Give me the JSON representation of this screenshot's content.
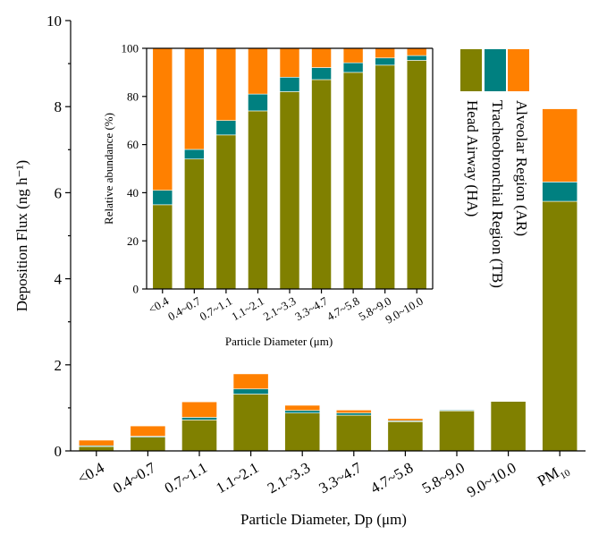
{
  "chart_data": [
    {
      "type": "bar",
      "stacked": true,
      "categories": [
        "<0.4",
        "0.4~0.7",
        "0.7~1.1",
        "1.1~2.1",
        "2.1~3.3",
        "3.3~4.7",
        "4.7~5.8",
        "5.8~9.0",
        "9.0~10.0",
        "PM10"
      ],
      "series": [
        {
          "name": "Head Airway (HA)",
          "color": "#808000",
          "values": [
            0.1,
            0.32,
            0.72,
            1.32,
            0.88,
            0.83,
            0.68,
            0.93,
            1.15,
            5.8
          ]
        },
        {
          "name": "Tracheobronchial Region (TB)",
          "color": "#008080",
          "values": [
            0.02,
            0.02,
            0.06,
            0.12,
            0.06,
            0.05,
            0.02,
            0.02,
            0.01,
            0.45
          ]
        },
        {
          "name": "Alveolar Region (AR)",
          "color": "#ff8000",
          "values": [
            0.13,
            0.24,
            0.36,
            0.35,
            0.12,
            0.07,
            0.05,
            0.01,
            0.0,
            1.7
          ]
        }
      ],
      "xlabel": "Particle Diameter, Dp (μm)",
      "ylabel": "Deposition Flux (ng h⁻¹)",
      "ylim": [
        0,
        10
      ],
      "yticks": [
        "0",
        "2",
        "4",
        "6",
        "8",
        "10"
      ],
      "grid": false,
      "legend_position": "top-right, vertical"
    },
    {
      "type": "bar",
      "stacked": true,
      "inset": true,
      "categories": [
        "<0.4",
        "0.4~0.7",
        "0.7~1.1",
        "1.1~2.1",
        "2.1~3.3",
        "3.3~4.7",
        "4.7~5.8",
        "5.8~9.0",
        "9.0~10.0"
      ],
      "series": [
        {
          "name": "Head Airway (HA)",
          "color": "#808000",
          "values": [
            35,
            54,
            64,
            74,
            82,
            87,
            90,
            93,
            95
          ]
        },
        {
          "name": "Tracheobronchial Region (TB)",
          "color": "#008080",
          "values": [
            6,
            4,
            6,
            7,
            6,
            5,
            4,
            3,
            2
          ]
        },
        {
          "name": "Alveolar Region (AR)",
          "color": "#ff8000",
          "values": [
            59,
            42,
            30,
            19,
            12,
            8,
            6,
            4,
            3
          ]
        }
      ],
      "xlabel": "Particle Diameter (μm)",
      "ylabel": "Relative abundance (%)",
      "ylim": [
        0,
        100
      ],
      "yticks": [
        "0",
        "20",
        "40",
        "60",
        "80",
        "100"
      ],
      "grid": false
    }
  ],
  "legend": {
    "entries": [
      {
        "label": "Alveolar Region (AR)",
        "color": "#ff8000"
      },
      {
        "label": "Tracheobronchial Region (TB)",
        "color": "#008080"
      },
      {
        "label": "Head Airway (HA)",
        "color": "#808000"
      }
    ]
  },
  "pm_label": {
    "base": "PM",
    "sub": "10"
  }
}
